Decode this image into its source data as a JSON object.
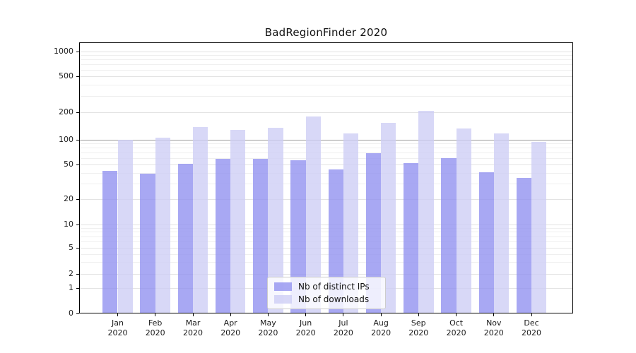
{
  "chart_data": {
    "type": "bar",
    "title": "BadRegionFinder 2020",
    "x_categories_month": [
      "Jan",
      "Feb",
      "Mar",
      "Apr",
      "May",
      "Jun",
      "Jul",
      "Aug",
      "Sep",
      "Oct",
      "Nov",
      "Dec"
    ],
    "x_year": "2020",
    "series": [
      {
        "name": "Nb of distinct IPs",
        "color": "#8f8ff0",
        "alpha": 0.78,
        "values": [
          42,
          39,
          51,
          59,
          59,
          56,
          44,
          69,
          52,
          60,
          41,
          35
        ]
      },
      {
        "name": "Nb of downloads",
        "color": "#cdcdf5",
        "alpha": 0.78,
        "values": [
          100,
          105,
          137,
          128,
          135,
          180,
          117,
          154,
          207,
          133,
          116,
          94
        ]
      }
    ],
    "yscale": "symlog",
    "ylim": [
      0,
      1260
    ],
    "yticks": [
      0,
      1,
      2,
      5,
      10,
      20,
      50,
      100,
      200,
      500,
      1000
    ],
    "minor_gridlines": [
      3,
      4,
      6,
      7,
      8,
      9,
      30,
      40,
      60,
      70,
      80,
      90,
      300,
      400,
      600,
      700,
      800,
      900
    ],
    "reference_line_value": 100,
    "grid": true,
    "legend_position": "lower center",
    "xlabel": "",
    "ylabel": ""
  },
  "colors": {
    "gridline_major": "#e3e3e3",
    "gridline_minor": "#efefef",
    "reference_line": "#9b9b9b",
    "axis": "#000000",
    "text": "#1a1a1a",
    "background": "#ffffff"
  }
}
